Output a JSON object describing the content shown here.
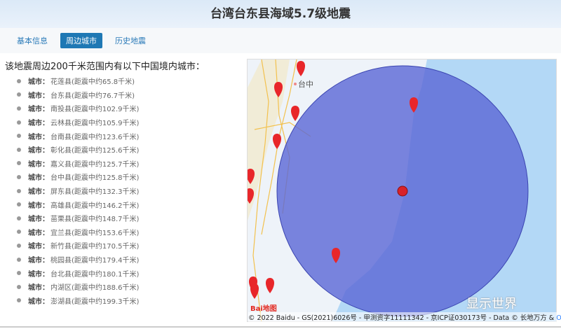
{
  "header": {
    "title": "台湾台东县海域5.7级地震"
  },
  "tabs": [
    {
      "label": "基本信息",
      "active": false
    },
    {
      "label": "周边城市",
      "active": true
    },
    {
      "label": "历史地震",
      "active": false
    }
  ],
  "intro": "该地震周边200千米范围内有以下中国境内城市：",
  "city_label": "城市：",
  "cities": [
    "花莲县(距震中约65.8千米)",
    "台东县(距震中约76.7千米)",
    "南投县(距震中约102.9千米)",
    "云林县(距震中约105.9千米)",
    "台南县(距震中约123.6千米)",
    "彰化县(距震中约125.6千米)",
    "嘉义县(距震中约125.7千米)",
    "台中县(距震中约125.8千米)",
    "屏东县(距震中约132.3千米)",
    "高雄县(距震中约146.2千米)",
    "苗栗县(距震中约148.7千米)",
    "宜兰县(距震中约153.6千米)",
    "新竹县(距震中约170.5千米)",
    "桃园县(距震中约179.4千米)",
    "台北县(距震中约180.1千米)",
    "内湖区(距震中约188.6千米)",
    "澎湖县(距震中约199.3千米)"
  ],
  "map": {
    "city_label": "台中",
    "logo": "Bai地图",
    "copyright": "© 2022 Baidu - GS(2021)6026号 - 甲测资字11111342 - 京ICP证030173号 - Data © 长地万方 & ",
    "copyright_link": "Op",
    "radius_km": 200,
    "circle_color": "#5a66d6",
    "ocean_color": "#b3d8f6",
    "marker_color": "#e8262a"
  },
  "watermark": "显示世界"
}
